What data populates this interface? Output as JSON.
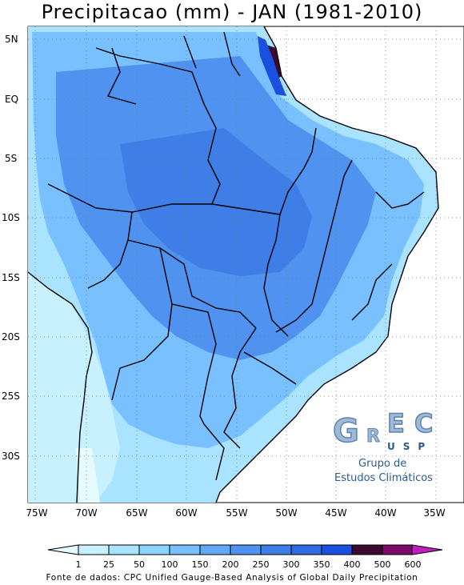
{
  "title": "Precipitacao (mm) - JAN (1981-2010)",
  "lat_labels": [
    "5N",
    "EQ",
    "5S",
    "10S",
    "15S",
    "20S",
    "25S",
    "30S"
  ],
  "lon_labels": [
    "75W",
    "70W",
    "65W",
    "60W",
    "55W",
    "50W",
    "45W",
    "40W",
    "35W"
  ],
  "legend": {
    "labels": [
      "1",
      "25",
      "50",
      "100",
      "150",
      "200",
      "250",
      "300",
      "350",
      "400",
      "500",
      "600"
    ],
    "colors": [
      "#e6fbff",
      "#c8f1ff",
      "#a9e3ff",
      "#8cd3ff",
      "#78c0ff",
      "#62a8f7",
      "#4f92f0",
      "#3e7ee6",
      "#2f6ae0",
      "#1a4fe0",
      "#3a0a2e",
      "#7b0a6b",
      "#c21dbf"
    ]
  },
  "logo": {
    "letters": "GREC",
    "sub": "USP",
    "line1": "Grupo de",
    "line2": "Estudos Climáticos",
    "color": "#6e95c2"
  },
  "source": "Fonte de dados: CPC Unified Gauge-Based Analysis of Global Daily Precipitation"
}
